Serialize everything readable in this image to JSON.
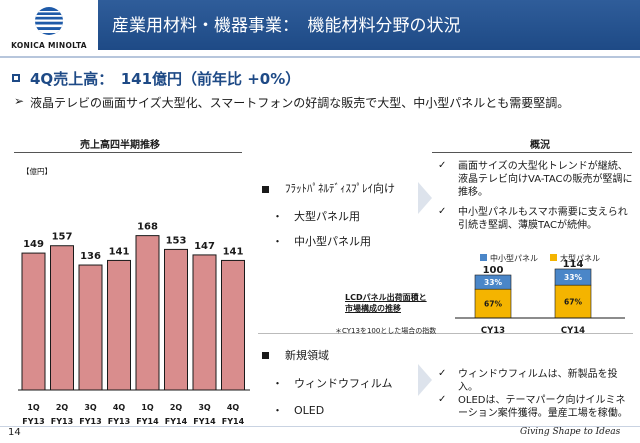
{
  "header": {
    "logo_text": "KONICA MINOLTA",
    "title": "産業用材料・機器事業：　機能材料分野の状況",
    "bar_color": "#1e4a86"
  },
  "headline": {
    "main": "4Q売上高：　141億円（前年比 +0%）",
    "sub": "液晶テレビの画面サイズ大型化、スマートフォンの好調な販売で大型、中小型パネルとも需要堅調。"
  },
  "chart_data": [
    {
      "type": "bar",
      "title": "売上高四半期推移",
      "unit": "【億円】",
      "categories": [
        [
          "1Q",
          "FY13"
        ],
        [
          "2Q",
          "FY13"
        ],
        [
          "3Q",
          "FY13"
        ],
        [
          "4Q",
          "FY13"
        ],
        [
          "1Q",
          "FY14"
        ],
        [
          "2Q",
          "FY14"
        ],
        [
          "3Q",
          "FY14"
        ],
        [
          "4Q",
          "FY14"
        ]
      ],
      "values": [
        149,
        157,
        136,
        141,
        168,
        153,
        147,
        141
      ],
      "ylim": [
        0,
        185
      ],
      "bar_color": "#d98d8d",
      "bar_border": "#1a1a1a"
    },
    {
      "type": "bar",
      "title": "LCDパネル出荷面積と\n市場構成の推移",
      "note": "＊CY13を100とした場合の指数",
      "categories": [
        "CY13",
        "CY14"
      ],
      "totals": [
        100,
        114
      ],
      "series": [
        {
          "name": "中小型パネル",
          "values": [
            33,
            33
          ],
          "color": "#4a86c8"
        },
        {
          "name": "大型パネル",
          "values": [
            67,
            67
          ],
          "color": "#f4b400"
        }
      ]
    }
  ],
  "middle": {
    "flat_title": "ﾌﾗｯﾄﾊﾟﾈﾙﾃﾞｨｽﾌﾟﾚｲ向け",
    "flat_items": [
      "・　大型パネル用",
      "・　中小型パネル用"
    ],
    "new_title": "新規領域",
    "new_items": [
      "・　ウィンドウフィルム",
      "・　OLED"
    ]
  },
  "overview": {
    "title": "概況",
    "points_top": [
      "画面サイズの大型化トレンドが継続、液晶テレビ向けVA-TACの販売が堅調に推移。",
      "中小型パネルもスマホ需要に支えられ引続き堅調、薄膜TACが続伸。"
    ],
    "points_bottom": [
      "ウィンドウフィルムは、新製品を投入。",
      "OLEDは、テーマパーク向けイルミネーション案件獲得。量産工場を稼働。"
    ]
  },
  "footer": {
    "page_number": "14",
    "tagline": "Giving Shape to Ideas"
  }
}
